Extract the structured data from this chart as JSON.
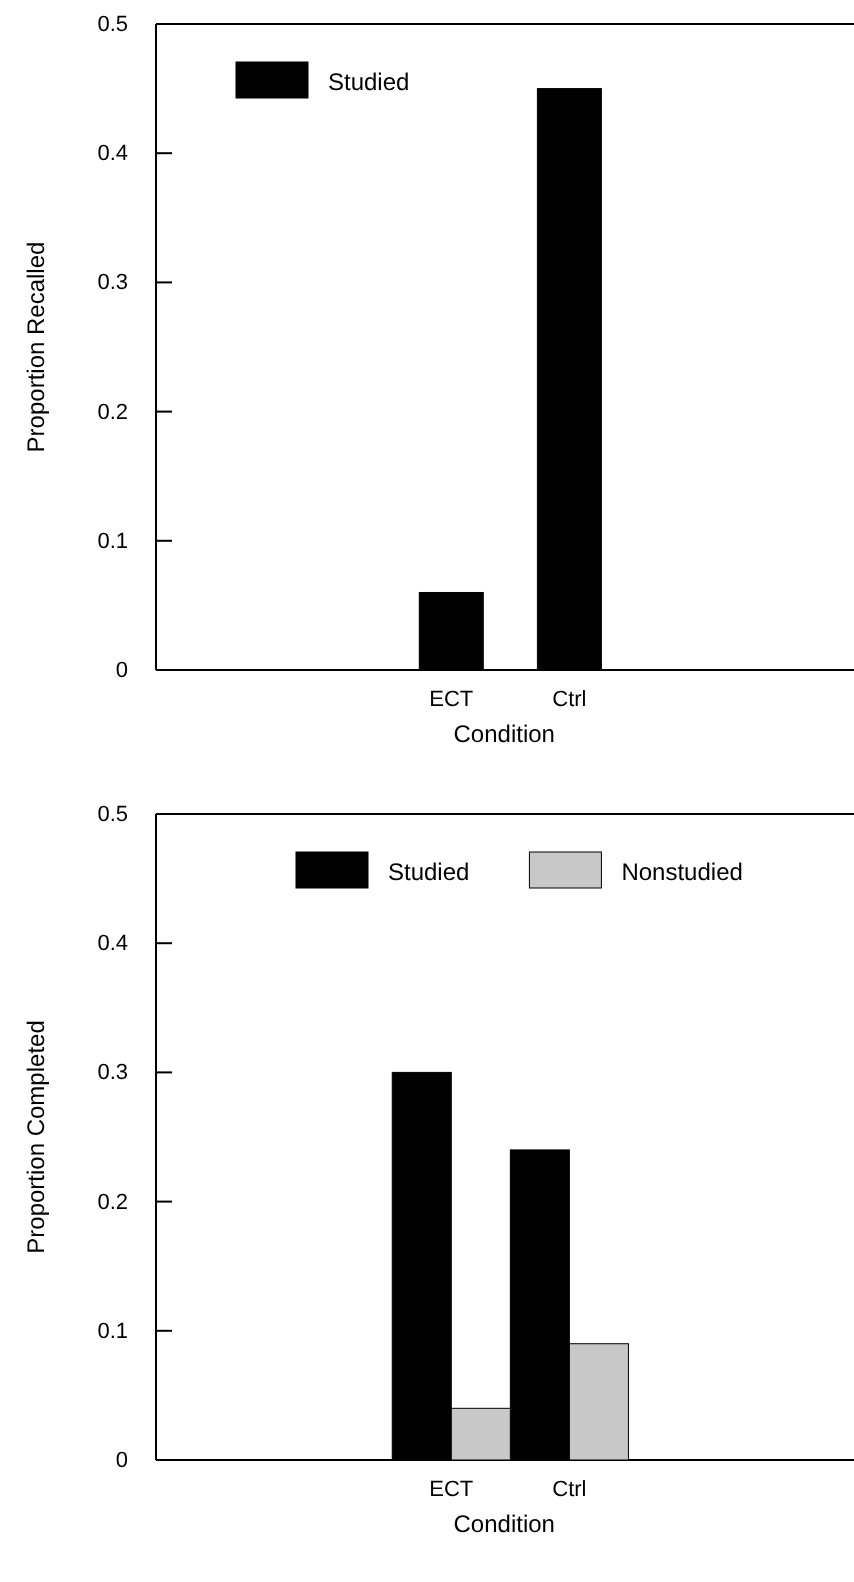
{
  "chart_data": [
    {
      "type": "bar",
      "categories": [
        "ECT",
        "Ctrl"
      ],
      "xlabel": "Condition",
      "ylabel": "Proportion Recalled",
      "ylim": [
        0,
        0.5
      ],
      "yticks": [
        0,
        0.1,
        0.2,
        0.3,
        0.4,
        0.5
      ],
      "legend": "top left",
      "series": [
        {
          "name": "Studied",
          "color": "#000000",
          "values": [
            0.06,
            0.45
          ]
        }
      ]
    },
    {
      "type": "bar",
      "categories": [
        "ECT",
        "Ctrl"
      ],
      "xlabel": "Condition",
      "ylabel": "Proportion Completed",
      "ylim": [
        0,
        0.5
      ],
      "yticks": [
        0,
        0.1,
        0.2,
        0.3,
        0.4,
        0.5
      ],
      "legend": "top",
      "series": [
        {
          "name": "Studied",
          "color": "#000000",
          "values": [
            0.3,
            0.24
          ]
        },
        {
          "name": "Nonstudied",
          "color": "#c8c8c8",
          "values": [
            0.04,
            0.09
          ]
        }
      ]
    }
  ]
}
